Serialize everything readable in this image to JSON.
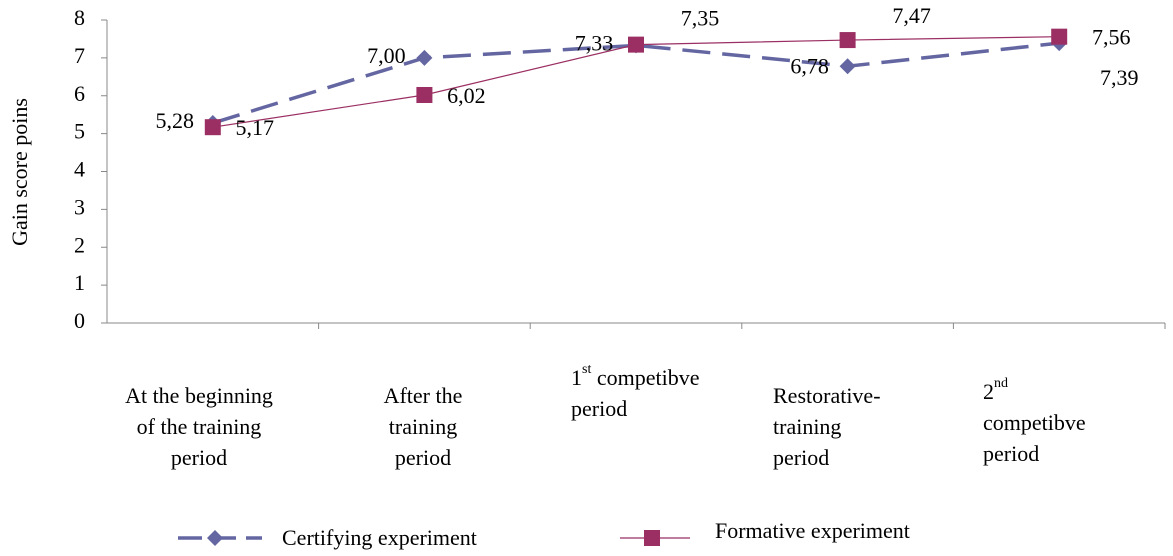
{
  "chart_data": {
    "type": "line",
    "y_label": "Gain score  poins",
    "categories": [
      [
        [
          {
            "text": "At the beginning"
          }
        ],
        [
          {
            "text": "of the training"
          }
        ],
        [
          {
            "text": "period"
          }
        ]
      ],
      [
        [
          {
            "text": "After the"
          }
        ],
        [
          {
            "text": "training"
          }
        ],
        [
          {
            "text": "period"
          }
        ]
      ],
      [
        [
          {
            "text": "1"
          },
          {
            "text": "st",
            "sup": true
          },
          {
            "text": " competibve"
          }
        ],
        [
          {
            "text": "period"
          }
        ]
      ],
      [
        [
          {
            "text": "Restorative-"
          }
        ],
        [
          {
            "text": "training"
          }
        ],
        [
          {
            "text": "period"
          }
        ]
      ],
      [
        [
          {
            "text": "2"
          },
          {
            "text": "nd",
            "sup": true
          }
        ],
        [
          {
            "text": "competibve"
          }
        ],
        [
          {
            "text": "period"
          }
        ]
      ]
    ],
    "series": [
      {
        "name": "Certifying experiment",
        "color": "#6466a2",
        "dash": true,
        "marker": "diamond",
        "values": [
          5.28,
          7.0,
          7.33,
          6.78,
          7.39
        ],
        "value_labels": [
          "5,28",
          "7,00",
          "7,33",
          "6,78",
          "7,39"
        ]
      },
      {
        "name": "Formative experiment",
        "color": "#9b2f63",
        "dash": false,
        "marker": "square",
        "values": [
          5.17,
          6.02,
          7.35,
          7.47,
          7.56
        ],
        "value_labels": [
          "5,17",
          "6,02",
          "7,35",
          "7,47",
          "7,56"
        ]
      }
    ],
    "ylim": [
      0,
      8
    ],
    "yticks": [
      0,
      1,
      2,
      3,
      4,
      5,
      6,
      7,
      8
    ],
    "grid": false
  }
}
